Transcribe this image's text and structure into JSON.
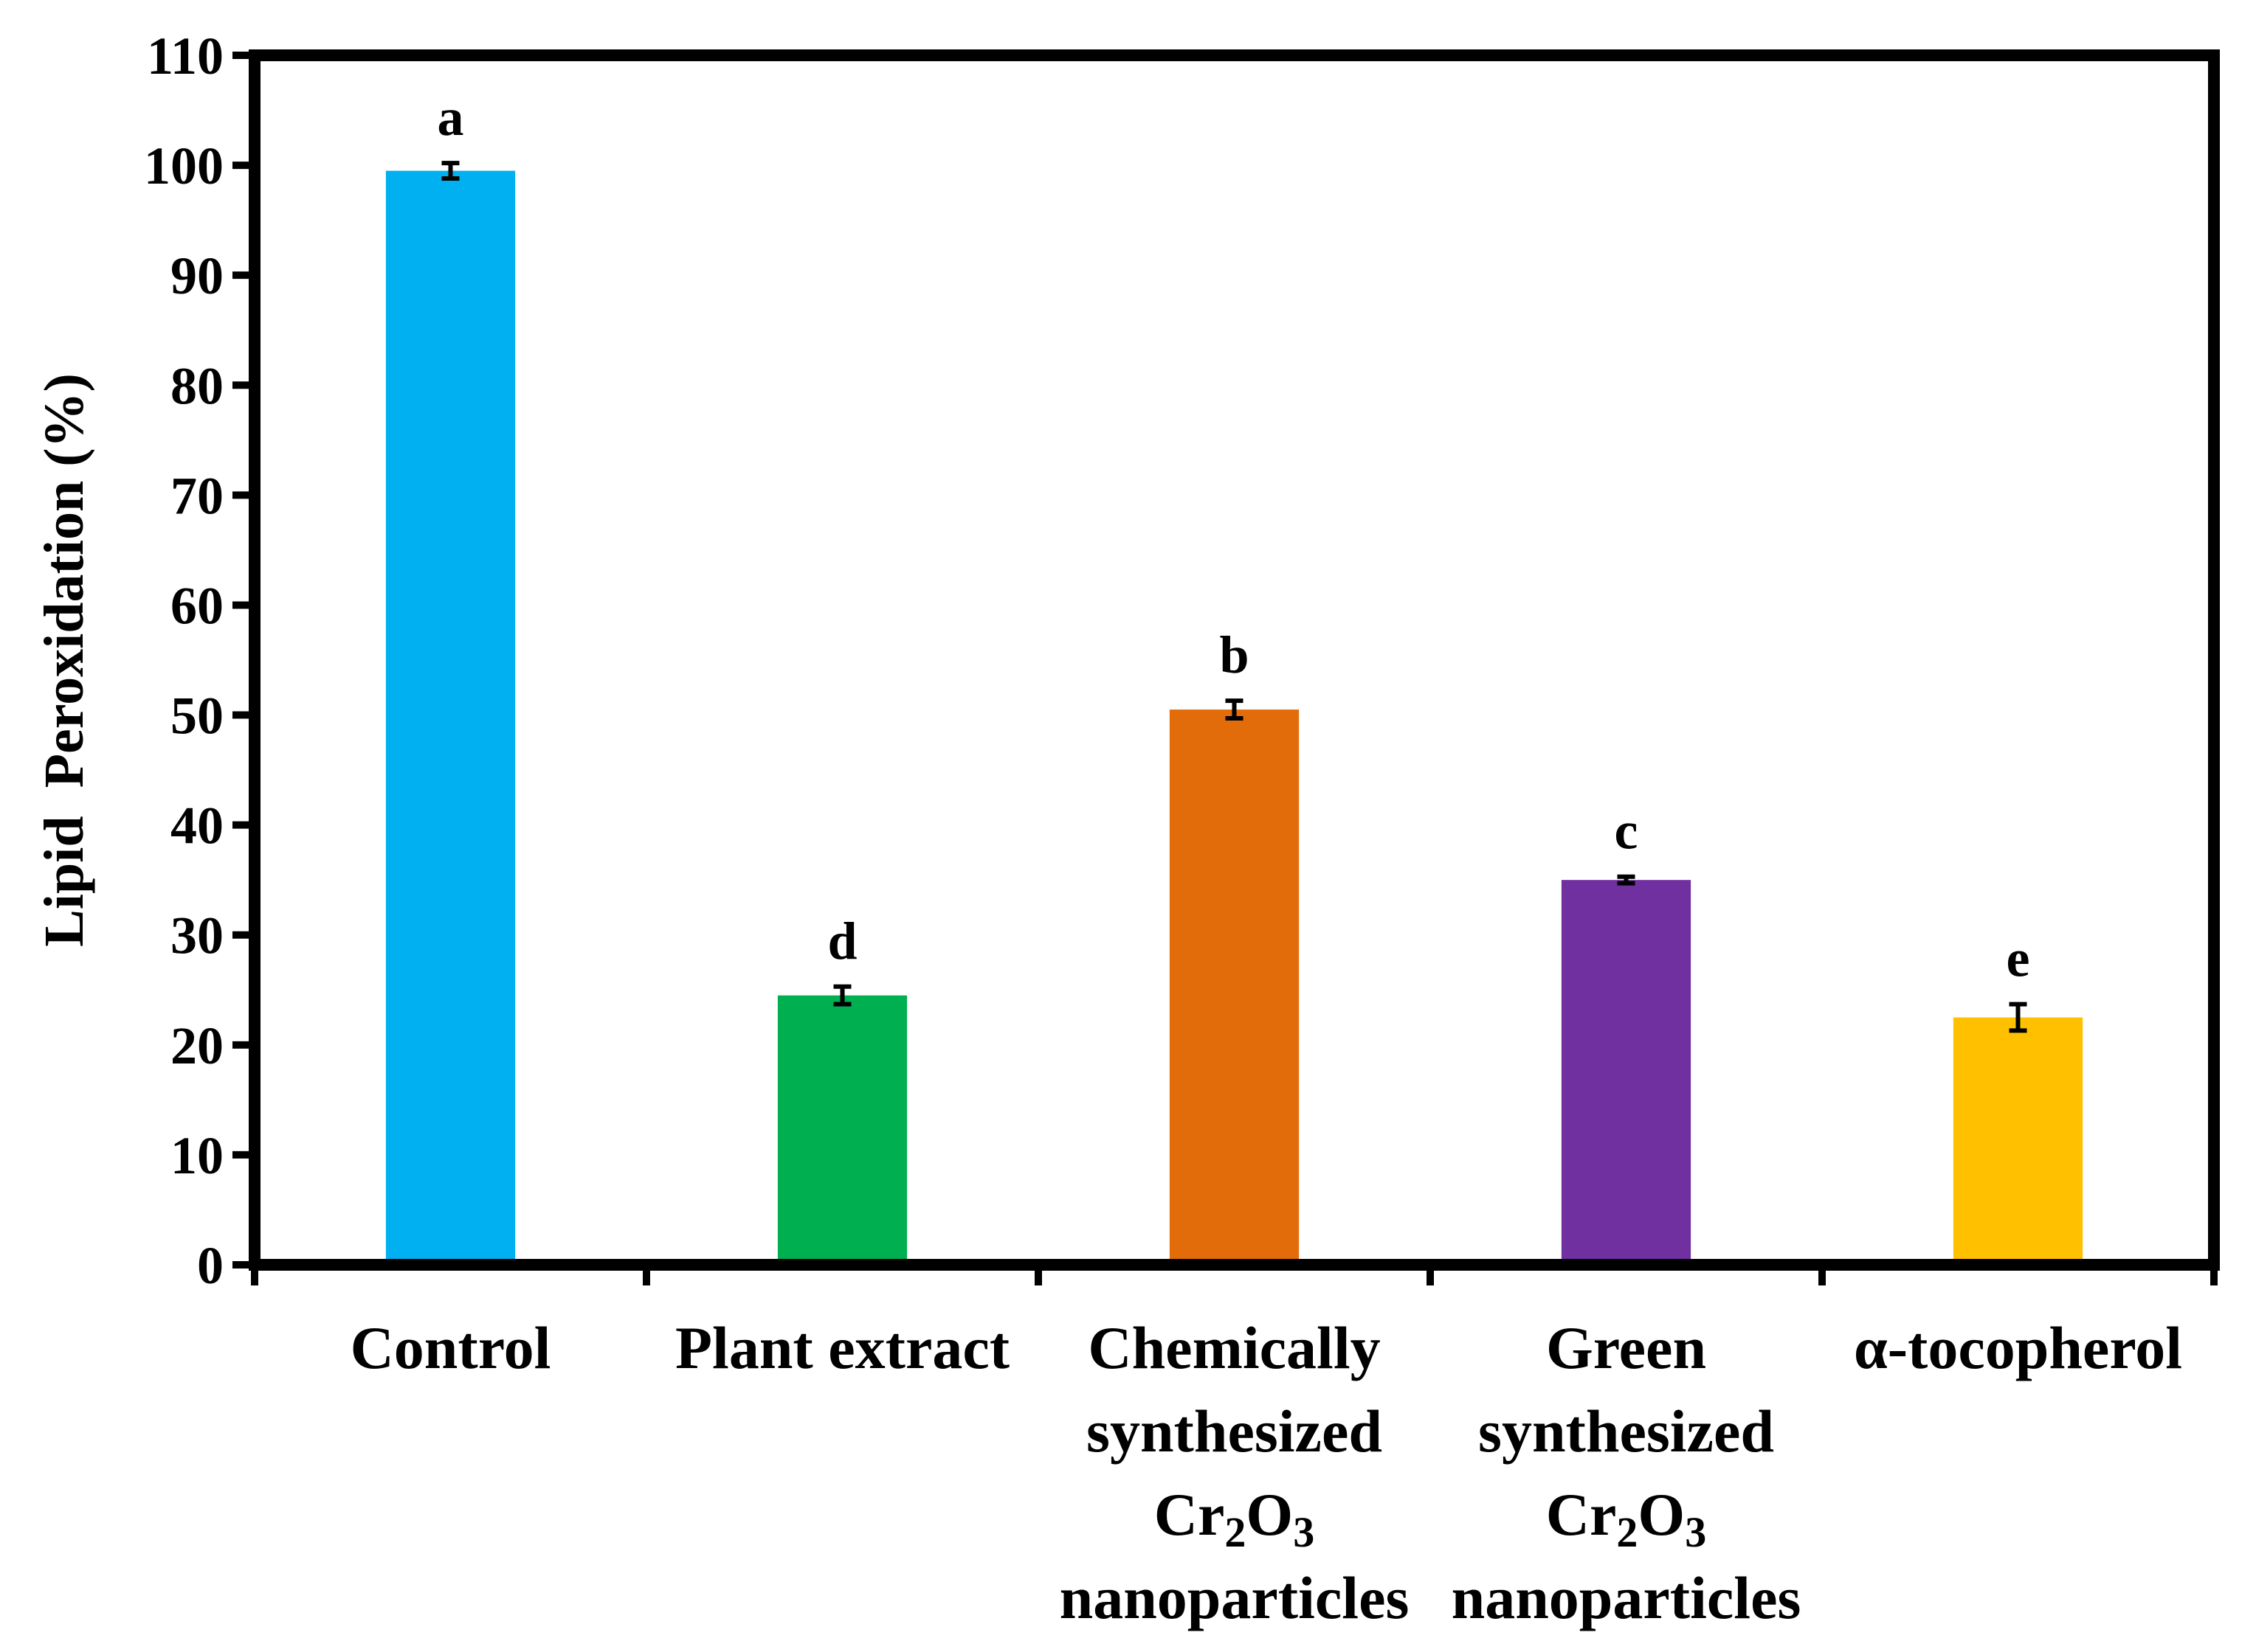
{
  "chart_data": {
    "type": "bar",
    "title": "",
    "xlabel": "",
    "ylabel": "Lipid  Peroxidation (%)",
    "ylim": [
      0,
      110
    ],
    "yticks": [
      0,
      10,
      20,
      30,
      40,
      50,
      60,
      70,
      80,
      90,
      100,
      110
    ],
    "grid": false,
    "categories": [
      [
        "Control"
      ],
      [
        "Plant extract"
      ],
      [
        "Chemically",
        "synthesized",
        "Cr2O3",
        "nanoparticles"
      ],
      [
        "Green",
        "synthesized",
        "Cr2O3",
        "nanoparticles"
      ],
      [
        "α-tocopherol"
      ]
    ],
    "values": [
      99.5,
      24.5,
      50.5,
      35.0,
      22.5
    ],
    "errors": [
      0.7,
      0.8,
      0.8,
      0.3,
      1.2
    ],
    "significance": [
      "a",
      "d",
      "b",
      "c",
      "e"
    ],
    "colors": [
      "#00B0F0",
      "#00B050",
      "#E36C0A",
      "#7030A0",
      "#FFC000"
    ]
  }
}
